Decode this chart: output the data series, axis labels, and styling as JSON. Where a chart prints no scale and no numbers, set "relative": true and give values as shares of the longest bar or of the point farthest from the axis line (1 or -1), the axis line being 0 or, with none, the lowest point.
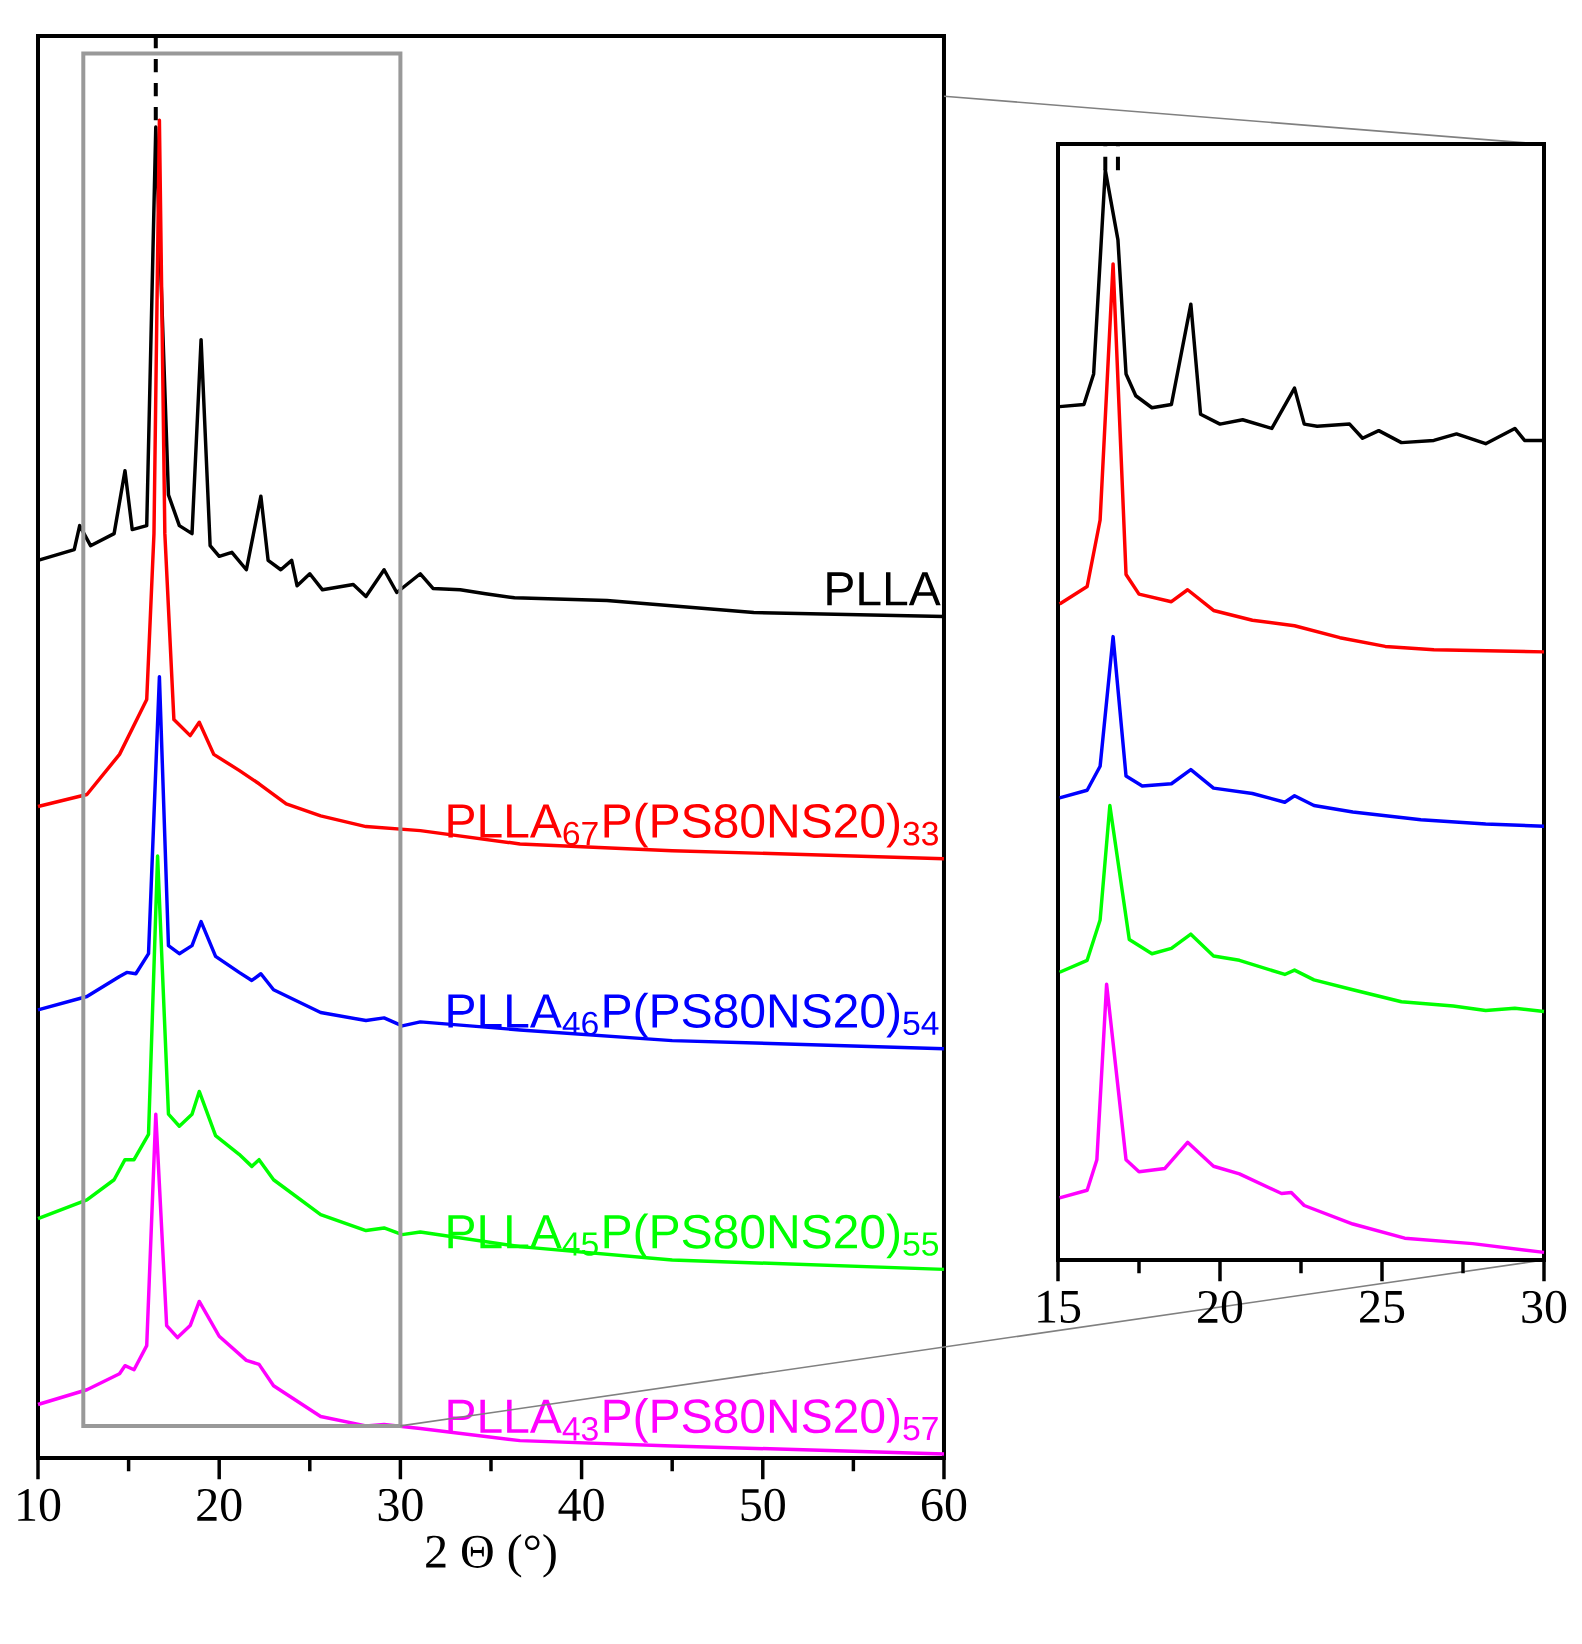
{
  "chart_data": [
    {
      "type": "line",
      "xlabel": "2 Θ (°)",
      "relative": true,
      "xlim": [
        10,
        60
      ],
      "xticks": [
        10,
        20,
        30,
        40,
        50,
        60
      ],
      "series": [
        {
          "name": "PLLA",
          "color": "#000000",
          "x": [
            10,
            12.0,
            12.3,
            12.9,
            14.2,
            14.8,
            15.2,
            16.0,
            16.5,
            17.2,
            17.8,
            18.5,
            19.0,
            19.5,
            20.0,
            20.7,
            21.5,
            22.3,
            22.7,
            23.4,
            24.0,
            24.3,
            25.0,
            25.7,
            27.4,
            28.1,
            29.1,
            29.8,
            31.1,
            31.8,
            33.3,
            34.7,
            36.3,
            41.4,
            49.5,
            60
          ],
          "values": [
            0.671,
            0.679,
            0.697,
            0.682,
            0.691,
            0.738,
            0.694,
            0.697,
            0.995,
            0.72,
            0.697,
            0.691,
            0.836,
            0.682,
            0.674,
            0.677,
            0.664,
            0.719,
            0.671,
            0.664,
            0.671,
            0.652,
            0.661,
            0.649,
            0.653,
            0.644,
            0.664,
            0.647,
            0.661,
            0.65,
            0.649,
            0.646,
            0.643,
            0.641,
            0.632,
            0.629
          ]
        },
        {
          "name": "PLLA$_{67}$P(PS80NS20)$_{33}$",
          "color": "#ff0000",
          "x": [
            10,
            12.7,
            14.5,
            16.0,
            16.4,
            16.7,
            17.0,
            17.5,
            18.4,
            18.9,
            19.7,
            21.1,
            22.2,
            23.7,
            25.6,
            28.1,
            31.1,
            36.6,
            45,
            60
          ],
          "values": [
            0.487,
            0.496,
            0.526,
            0.567,
            0.691,
            1.0,
            0.691,
            0.552,
            0.54,
            0.55,
            0.526,
            0.514,
            0.504,
            0.489,
            0.48,
            0.472,
            0.469,
            0.459,
            0.454,
            0.448
          ]
        },
        {
          "name": "PLLA$_{46}$P(PS80NS20)$_{54}$",
          "color": "#0000ff",
          "x": [
            10,
            12.7,
            14.5,
            14.9,
            15.4,
            16.1,
            16.7,
            17.2,
            17.8,
            18.5,
            19.0,
            19.8,
            21.1,
            21.8,
            22.3,
            23.0,
            25.6,
            28.1,
            29.1,
            30.1,
            31.1,
            36.6,
            45,
            60
          ],
          "values": [
            0.335,
            0.345,
            0.36,
            0.363,
            0.362,
            0.377,
            0.584,
            0.383,
            0.377,
            0.383,
            0.401,
            0.375,
            0.363,
            0.357,
            0.362,
            0.35,
            0.333,
            0.327,
            0.329,
            0.323,
            0.326,
            0.32,
            0.312,
            0.306
          ]
        },
        {
          "name": "PLLA$_{45}$P(PS80NS20)$_{55}$",
          "color": "#00ff00",
          "x": [
            10,
            12.7,
            14.2,
            14.8,
            15.3,
            16.1,
            16.6,
            17.2,
            17.8,
            18.5,
            18.9,
            19.8,
            21.1,
            21.8,
            22.2,
            23.0,
            25.6,
            28.1,
            29.1,
            30.1,
            31.1,
            36.6,
            45,
            60
          ],
          "values": [
            0.179,
            0.193,
            0.208,
            0.223,
            0.223,
            0.242,
            0.45,
            0.257,
            0.248,
            0.257,
            0.274,
            0.241,
            0.227,
            0.218,
            0.223,
            0.208,
            0.182,
            0.17,
            0.172,
            0.167,
            0.169,
            0.158,
            0.148,
            0.141
          ]
        },
        {
          "name": "PLLA$_{43}$P(PS80NS20)$_{57}$",
          "color": "#ff00ff",
          "x": [
            10,
            12.7,
            14.5,
            14.8,
            15.3,
            16.0,
            16.5,
            17.1,
            17.7,
            18.4,
            18.9,
            20.0,
            21.5,
            22.2,
            23.0,
            25.6,
            28.1,
            29.1,
            31.1,
            36.6,
            45,
            60
          ],
          "values": [
            0.04,
            0.051,
            0.063,
            0.069,
            0.066,
            0.084,
            0.257,
            0.099,
            0.09,
            0.099,
            0.117,
            0.091,
            0.073,
            0.07,
            0.054,
            0.031,
            0.024,
            0.025,
            0.022,
            0.013,
            0.009,
            0.003
          ]
        }
      ]
    },
    {
      "type": "line",
      "relative": true,
      "xlim": [
        15,
        30
      ],
      "xticks": [
        15,
        20,
        25,
        30
      ],
      "series": [
        {
          "color": "#000000",
          "x": [
            15.05,
            15.8,
            16.1,
            16.46,
            16.85,
            17.1,
            17.4,
            17.9,
            18.5,
            19.1,
            19.4,
            20.0,
            20.7,
            21.6,
            22.3,
            22.6,
            23.0,
            24.0,
            24.4,
            24.9,
            25.6,
            26.6,
            27.3,
            28.2,
            29.1,
            29.4,
            30
          ],
          "values": [
            0.783,
            0.785,
            0.813,
            1.0,
            0.936,
            0.813,
            0.793,
            0.782,
            0.785,
            0.877,
            0.776,
            0.767,
            0.771,
            0.763,
            0.8,
            0.767,
            0.765,
            0.767,
            0.754,
            0.761,
            0.75,
            0.752,
            0.758,
            0.749,
            0.763,
            0.752,
            0.752
          ]
        },
        {
          "color": "#ff0000",
          "x": [
            15.05,
            15.9,
            16.3,
            16.7,
            17.1,
            17.5,
            18.5,
            19.0,
            19.8,
            21.0,
            22.3,
            23.7,
            25.1,
            26.6,
            30
          ],
          "values": [
            0.602,
            0.618,
            0.679,
            0.914,
            0.629,
            0.611,
            0.604,
            0.615,
            0.596,
            0.587,
            0.582,
            0.571,
            0.563,
            0.56,
            0.558
          ]
        },
        {
          "color": "#0000ff",
          "x": [
            15.05,
            15.9,
            16.3,
            16.7,
            17.1,
            17.6,
            18.5,
            19.1,
            19.8,
            21.0,
            22.0,
            22.3,
            22.9,
            24.1,
            26.2,
            28.2,
            30
          ],
          "values": [
            0.424,
            0.431,
            0.453,
            0.572,
            0.444,
            0.435,
            0.437,
            0.45,
            0.433,
            0.428,
            0.42,
            0.426,
            0.417,
            0.411,
            0.404,
            0.4,
            0.398
          ]
        },
        {
          "color": "#00ff00",
          "x": [
            15.05,
            15.9,
            16.3,
            16.6,
            17.2,
            17.9,
            18.5,
            19.1,
            19.8,
            20.6,
            22.0,
            22.3,
            22.9,
            24.1,
            25.6,
            27.2,
            28.2,
            29.1,
            30
          ],
          "values": [
            0.264,
            0.275,
            0.312,
            0.417,
            0.294,
            0.281,
            0.286,
            0.299,
            0.279,
            0.275,
            0.262,
            0.266,
            0.257,
            0.248,
            0.237,
            0.233,
            0.229,
            0.231,
            0.228
          ]
        },
        {
          "color": "#ff00ff",
          "x": [
            15.05,
            15.9,
            16.2,
            16.5,
            17.1,
            17.5,
            18.3,
            19.0,
            19.8,
            20.6,
            21.9,
            22.2,
            22.6,
            24.1,
            25.7,
            27.8,
            30
          ],
          "values": [
            0.057,
            0.064,
            0.092,
            0.253,
            0.092,
            0.081,
            0.084,
            0.108,
            0.086,
            0.079,
            0.061,
            0.062,
            0.05,
            0.033,
            0.02,
            0.015,
            0.007
          ]
        }
      ]
    }
  ]
}
